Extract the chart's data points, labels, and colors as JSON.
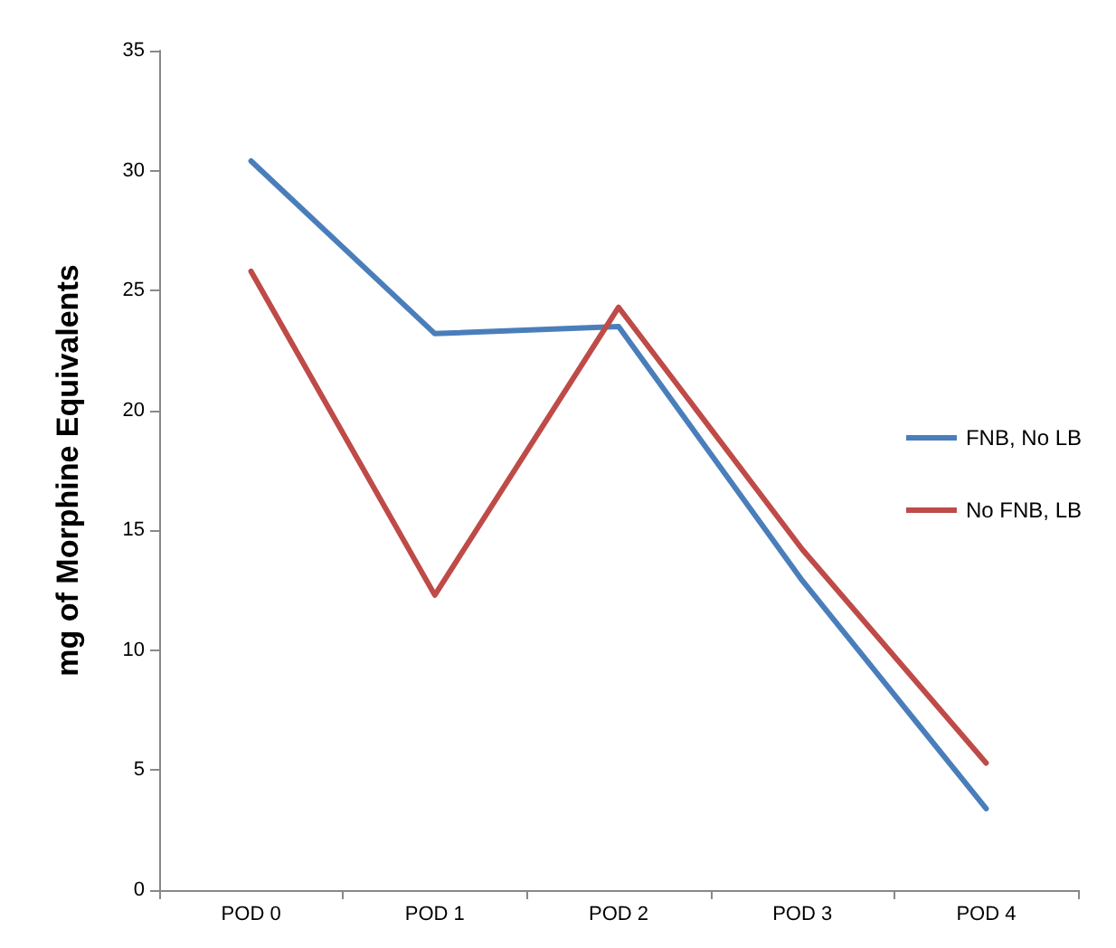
{
  "chart_data": {
    "type": "line",
    "ylabel": "mg of Morphine Equivalents",
    "categories": [
      "POD 0",
      "POD 1",
      "POD 2",
      "POD 3",
      "POD 4"
    ],
    "series": [
      {
        "name": "FNB, No LB",
        "color": "#4a7ebb",
        "values": [
          30.4,
          23.2,
          23.5,
          12.9,
          3.4
        ]
      },
      {
        "name": "No FNB, LB",
        "color": "#be4b48",
        "values": [
          25.8,
          12.3,
          24.3,
          14.2,
          5.3
        ]
      }
    ],
    "ylim": [
      0,
      35
    ],
    "yticks": [
      0,
      5,
      10,
      15,
      20,
      25,
      30,
      35
    ],
    "grid": false,
    "legend": "right",
    "marker": "none",
    "line_style": "solid"
  }
}
